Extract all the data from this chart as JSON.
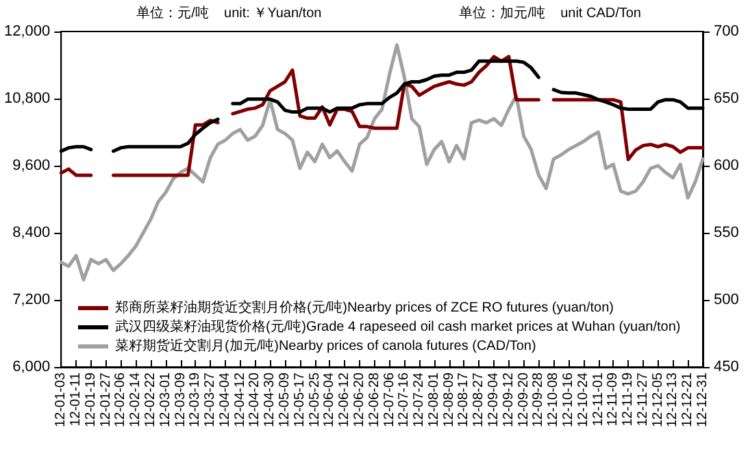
{
  "chart_data": {
    "type": "line",
    "ylabel": "单位：元/吨    unit: ￥Yuan/ton",
    "y2label": "单位：加元/吨    unit CAD/Ton",
    "categories": [
      "12-01-03",
      null,
      "12-01-11",
      null,
      "12-01-19",
      null,
      "12-01-27",
      null,
      "12-02-06",
      null,
      "12-02-14",
      null,
      "12-02-22",
      null,
      "12-03-01",
      null,
      "12-03-09",
      null,
      "12-03-19",
      null,
      "12-03-27",
      null,
      "12-04-04",
      null,
      "12-04-12",
      null,
      "12-04-20",
      null,
      "12-04-30",
      null,
      "12-05-09",
      null,
      "12-05-17",
      null,
      "12-05-25",
      null,
      "12-06-04",
      null,
      "12-06-12",
      null,
      "12-06-20",
      null,
      "12-06-28",
      null,
      "12-07-06",
      null,
      "12-07-16",
      null,
      "12-07-24",
      null,
      "12-08-01",
      null,
      "12-08-09",
      null,
      "12-08-17",
      null,
      "12-08-27",
      null,
      "12-09-04",
      null,
      "12-09-12",
      null,
      "12-09-20",
      null,
      "12-09-28",
      null,
      "12-10-08",
      null,
      "12-10-16",
      null,
      "12-10-24",
      null,
      "12-11-01",
      null,
      "12-11-09",
      null,
      "12-11-19",
      null,
      "12-11-27",
      null,
      "12-12-05",
      null,
      "12-12-13",
      null,
      "12-12-21",
      null,
      "12-12-31"
    ],
    "series": [
      {
        "name": "郑商所菜籽油期货近交割月价格(元/吨)Nearby prices of ZCE RO futures (yuan/ton)",
        "color": "#800000",
        "values": [
          9470,
          9540,
          9430,
          9430,
          9430,
          null,
          null,
          9430,
          9430,
          9430,
          9430,
          9430,
          9430,
          9430,
          9430,
          9430,
          9430,
          9430,
          10330,
          10330,
          10410,
          10370,
          null,
          10530,
          10570,
          10610,
          10630,
          10690,
          10940,
          11020,
          11100,
          11310,
          10490,
          10450,
          10450,
          10650,
          10330,
          10610,
          10610,
          10570,
          10300,
          10300,
          10270,
          10270,
          10270,
          10270,
          11060,
          11020,
          10860,
          10940,
          11020,
          11060,
          11100,
          11060,
          11040,
          11100,
          11270,
          11390,
          11550,
          11470,
          11550,
          10780,
          10780,
          10780,
          10780,
          null,
          10780,
          10780,
          10780,
          10780,
          10780,
          10780,
          10780,
          10780,
          10780,
          10740,
          9710,
          9880,
          9960,
          9980,
          9940,
          9980,
          9940,
          9840,
          9920,
          9920,
          9920
        ]
      },
      {
        "name": "武汉四级菜籽油现货价格(元/吨)Grade 4 rapeseed oil cash market prices at Wuhan (yuan/ton)",
        "color": "#000000",
        "values": [
          9860,
          9920,
          9940,
          9940,
          9890,
          null,
          null,
          9860,
          9920,
          9940,
          9940,
          9940,
          9940,
          9940,
          9940,
          9940,
          9940,
          10000,
          10160,
          10270,
          10370,
          10430,
          null,
          10710,
          10710,
          10790,
          10790,
          10790,
          10790,
          10740,
          10590,
          10560,
          10560,
          10630,
          10630,
          10630,
          10560,
          10630,
          10630,
          10630,
          10690,
          10710,
          10710,
          10710,
          10820,
          10900,
          11060,
          11100,
          11100,
          11140,
          11200,
          11220,
          11220,
          11270,
          11270,
          11310,
          11470,
          11470,
          11470,
          11470,
          11470,
          11470,
          11450,
          11350,
          11180,
          null,
          10960,
          10910,
          10900,
          10900,
          10870,
          10840,
          10780,
          10740,
          10690,
          10630,
          10610,
          10610,
          10610,
          10610,
          10740,
          10780,
          10780,
          10740,
          10630,
          10630,
          10630
        ]
      },
      {
        "name": "菜籽期货近交割月(加元/吨)Nearby prices of canola futures (CAD/Ton)",
        "color": "#a0a0a0",
        "axis": "y2",
        "values": [
          528,
          525,
          533,
          515,
          530,
          527,
          530,
          522,
          527,
          533,
          540,
          550,
          560,
          573,
          580,
          590,
          595,
          598,
          593,
          588,
          606,
          616,
          619,
          624,
          627,
          619,
          622,
          630,
          649,
          627,
          624,
          619,
          598,
          610,
          603,
          616,
          606,
          611,
          603,
          596,
          616,
          621,
          635,
          642,
          668,
          690,
          666,
          635,
          629,
          601,
          612,
          618,
          603,
          615,
          605,
          632,
          634,
          632,
          635,
          630,
          642,
          652,
          622,
          612,
          593,
          583,
          605,
          608,
          612,
          615,
          618,
          622,
          625,
          598,
          601,
          581,
          579,
          581,
          588,
          598,
          600,
          595,
          591,
          601,
          576,
          588,
          605
        ]
      }
    ],
    "ylim": [
      6000,
      12000
    ],
    "yticks": [
      {
        "value": 6000,
        "label": "6,000"
      },
      {
        "value": 7200,
        "label": "7,200"
      },
      {
        "value": 8400,
        "label": "8,400"
      },
      {
        "value": 9600,
        "label": "9,600"
      },
      {
        "value": 10800,
        "label": "10,800"
      },
      {
        "value": 12000,
        "label": "12,000"
      }
    ],
    "y2lim": [
      450,
      700
    ],
    "y2ticks": [
      450,
      500,
      550,
      600,
      650,
      700
    ],
    "grid": false,
    "legend": "bottom left",
    "marker": "none",
    "line_style": "solid"
  }
}
